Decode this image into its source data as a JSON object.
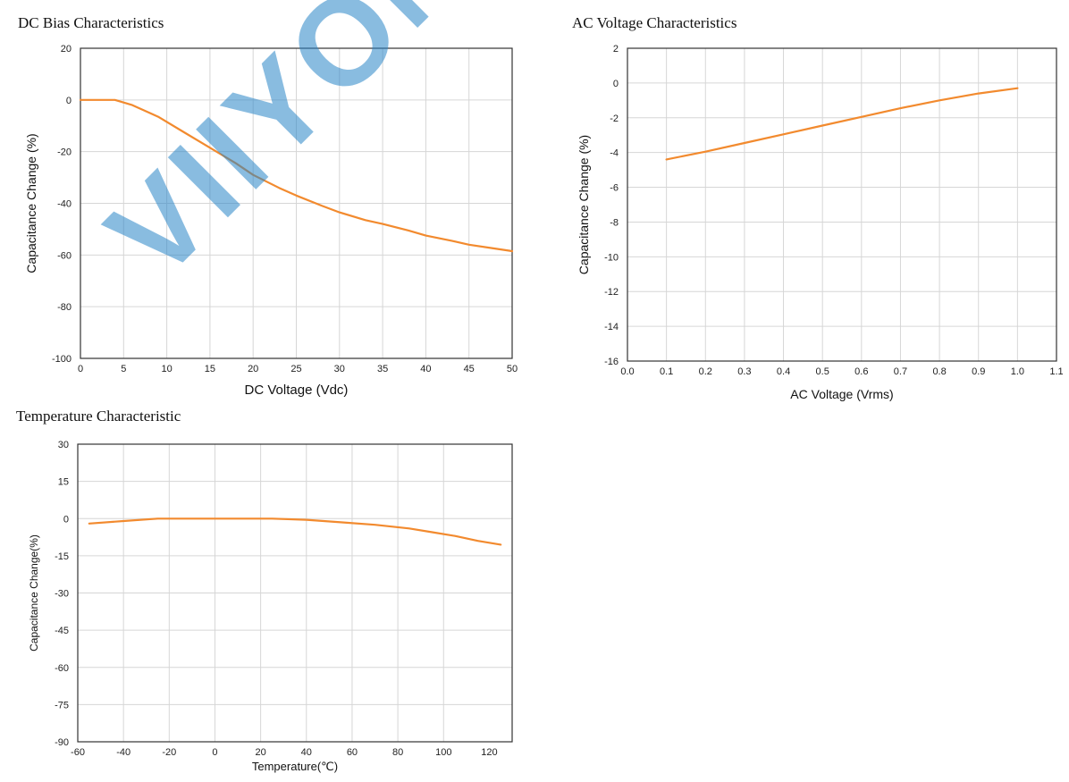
{
  "watermark": "VIIYONG",
  "chart_data": [
    {
      "id": "dc-bias",
      "type": "line",
      "title": "DC Bias Characteristics",
      "xlabel": "DC Voltage (Vdc)",
      "ylabel": "Capacitance Change (%)",
      "xlim": [
        0,
        50
      ],
      "ylim": [
        -100,
        20
      ],
      "xticks": [
        0,
        5,
        10,
        15,
        20,
        25,
        30,
        35,
        40,
        45,
        50
      ],
      "yticks": [
        20,
        0,
        -20,
        -40,
        -60,
        -80,
        -100
      ],
      "xtick_labels": [
        "0",
        "5",
        "10",
        "15",
        "20",
        "25",
        "30",
        "35",
        "40",
        "45",
        "50"
      ],
      "ytick_labels": [
        "20",
        "0",
        "-20",
        "-40",
        "-60",
        "-80",
        "-100"
      ],
      "grid": true,
      "color": "#f28a2e",
      "series": [
        {
          "x": [
            0,
            4,
            6,
            9,
            12,
            15,
            18,
            20,
            23,
            25,
            28,
            30,
            33,
            35,
            38,
            40,
            43,
            45,
            48,
            50
          ],
          "y": [
            0,
            0,
            -2,
            -6.5,
            -12.5,
            -18.5,
            -24.5,
            -29,
            -34,
            -37,
            -41,
            -43.5,
            -46.5,
            -48,
            -50.5,
            -52.5,
            -54.5,
            -56,
            -57.5,
            -58.5
          ]
        }
      ]
    },
    {
      "id": "ac-voltage",
      "type": "line",
      "title": "AC Voltage Characteristics",
      "xlabel": "AC Voltage (Vrms)",
      "ylabel": "Capacitance Change (%)",
      "xlim": [
        0,
        1.1
      ],
      "ylim": [
        -16,
        2
      ],
      "xticks": [
        0,
        0.1,
        0.2,
        0.3,
        0.4,
        0.5,
        0.6,
        0.7,
        0.8,
        0.9,
        1.0,
        1.1
      ],
      "yticks": [
        2,
        0,
        -2,
        -4,
        -6,
        -8,
        -10,
        -12,
        -14,
        -16
      ],
      "xtick_labels": [
        "0.0",
        "0.1",
        "0.2",
        "0.3",
        "0.4",
        "0.5",
        "0.6",
        "0.7",
        "0.8",
        "0.9",
        "1.0",
        "1.1"
      ],
      "ytick_labels": [
        "2",
        "0",
        "-2",
        "-4",
        "-6",
        "-8",
        "-10",
        "-12",
        "-14",
        "-16"
      ],
      "grid": true,
      "color": "#f28a2e",
      "series": [
        {
          "x": [
            0.1,
            0.2,
            0.3,
            0.4,
            0.5,
            0.6,
            0.7,
            0.8,
            0.9,
            1.0
          ],
          "y": [
            -4.4,
            -3.95,
            -3.45,
            -2.95,
            -2.45,
            -1.95,
            -1.45,
            -1.0,
            -0.6,
            -0.3
          ]
        }
      ]
    },
    {
      "id": "temperature",
      "type": "line",
      "title": "Temperature Characteristic",
      "xlabel": "Temperature(℃)",
      "ylabel": "Capacitance Change(%)",
      "xlim": [
        -60,
        130
      ],
      "ylim": [
        -90,
        30
      ],
      "xticks": [
        -60,
        -40,
        -20,
        0,
        20,
        40,
        60,
        80,
        100,
        120
      ],
      "yticks": [
        30,
        15,
        0,
        -15,
        -30,
        -45,
        -60,
        -75,
        -90
      ],
      "xtick_labels": [
        "-60",
        "-40",
        "-20",
        "0",
        "20",
        "40",
        "60",
        "80",
        "100",
        "120"
      ],
      "ytick_labels": [
        "30",
        "15",
        "0",
        "-15",
        "-30",
        "-45",
        "-60",
        "-75",
        "-90"
      ],
      "grid": true,
      "color": "#f28a2e",
      "series": [
        {
          "x": [
            -55,
            -40,
            -25,
            0,
            25,
            40,
            55,
            70,
            85,
            95,
            105,
            115,
            125
          ],
          "y": [
            -2,
            -1,
            0,
            0,
            0,
            -0.5,
            -1.5,
            -2.5,
            -4,
            -5.5,
            -7,
            -9,
            -10.5
          ]
        }
      ]
    }
  ]
}
